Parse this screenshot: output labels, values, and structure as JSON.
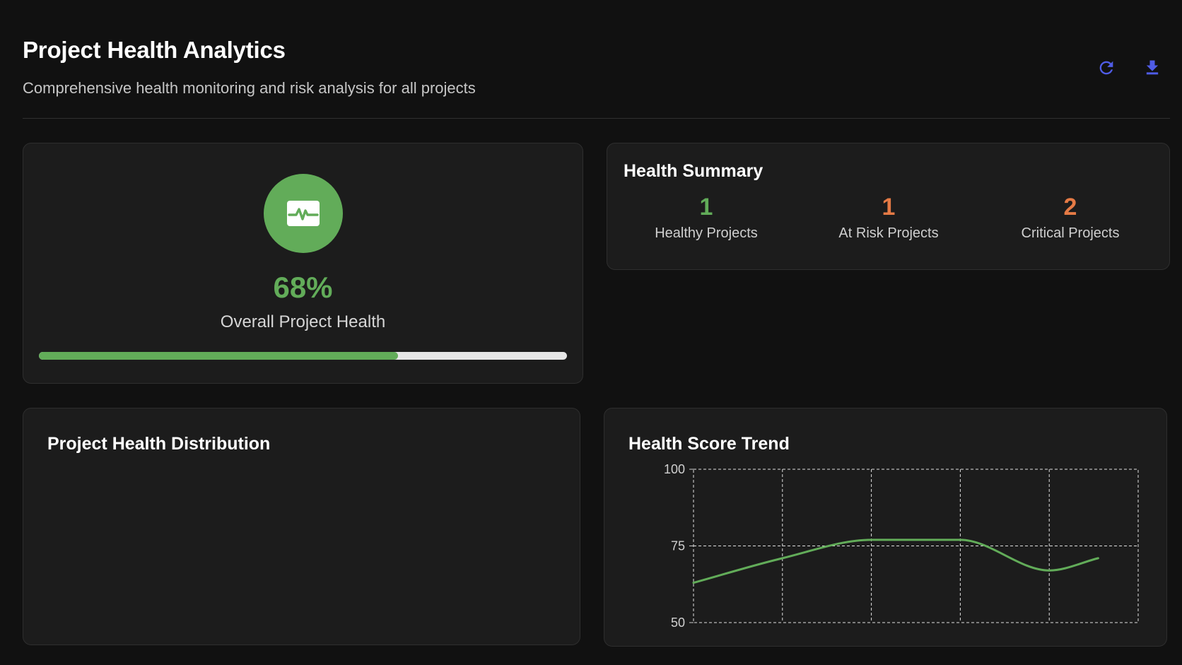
{
  "header": {
    "title": "Project Health Analytics",
    "subtitle": "Comprehensive health monitoring and risk analysis for all projects",
    "refresh_icon": "refresh-icon",
    "download_icon": "download-icon",
    "accent_color": "#4f5ce6"
  },
  "overall": {
    "value": "68%",
    "label": "Overall Project Health",
    "progress": 0.68,
    "icon": "health-monitor-icon",
    "color": "#62ac59"
  },
  "summary": {
    "title": "Health Summary",
    "stats": [
      {
        "value": "1",
        "label": "Healthy Projects",
        "color": "#62ac59"
      },
      {
        "value": "1",
        "label": "At Risk Projects",
        "color": "#e57a45"
      },
      {
        "value": "2",
        "label": "Critical Projects",
        "color": "#e57a45"
      }
    ]
  },
  "distribution": {
    "title": "Project Health Distribution"
  },
  "trend": {
    "title": "Health Score Trend"
  },
  "chart_data": {
    "type": "line",
    "title": "Health Score Trend",
    "xlabel": "",
    "ylabel": "",
    "x": [
      0,
      1,
      2,
      3,
      4,
      4.55
    ],
    "series": [
      {
        "values": [
          63,
          71,
          77,
          77,
          67,
          71
        ],
        "color": "#62ac59"
      }
    ],
    "ylim": [
      50,
      100
    ],
    "xlim": [
      0,
      5
    ],
    "yticks": [
      "100",
      "75",
      "50"
    ],
    "ytick_values": [
      100,
      75,
      50
    ],
    "grid": true,
    "grid_style": "dashed"
  }
}
